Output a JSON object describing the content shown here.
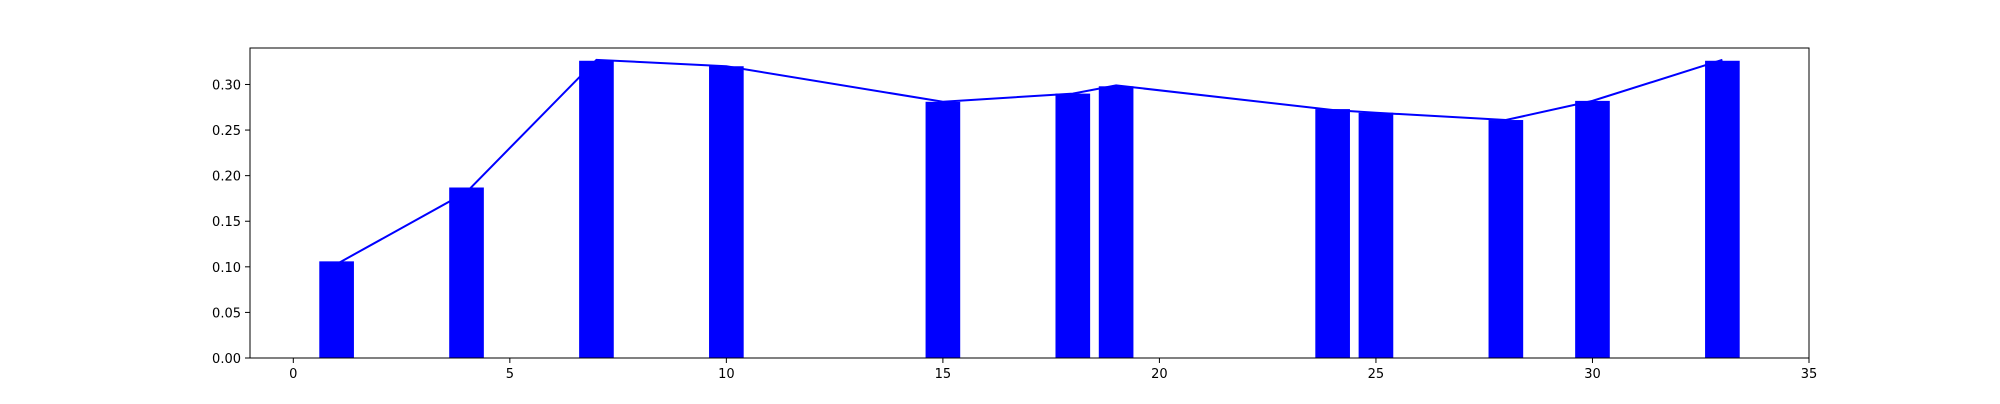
{
  "chart_data": {
    "type": "bar",
    "title": "",
    "xlabel": "",
    "ylabel": "",
    "xlim": [
      -1,
      35
    ],
    "ylim": [
      0,
      0.34
    ],
    "grid": false,
    "legend": "none",
    "xticks": [
      0,
      5,
      10,
      15,
      20,
      25,
      30,
      35
    ],
    "xtick_labels": [
      "0",
      "5",
      "10",
      "15",
      "20",
      "25",
      "30",
      "35"
    ],
    "yticks": [
      0.0,
      0.05,
      0.1,
      0.15,
      0.2,
      0.25,
      0.3
    ],
    "ytick_labels": [
      "0.00",
      "0.05",
      "0.10",
      "0.15",
      "0.20",
      "0.25",
      "0.30"
    ],
    "bar_width": 0.8,
    "series": [
      {
        "type": "bar",
        "color": "#0000ff",
        "x": [
          1,
          4,
          7,
          10,
          15,
          18,
          19,
          24,
          25,
          28,
          30,
          33
        ],
        "values": [
          0.106,
          0.187,
          0.326,
          0.32,
          0.281,
          0.29,
          0.298,
          0.273,
          0.269,
          0.261,
          0.282,
          0.326
        ]
      },
      {
        "type": "line",
        "color": "#0000ff",
        "x": [
          1,
          4,
          7,
          10,
          15,
          18,
          19,
          24,
          25,
          28,
          30,
          33
        ],
        "values": [
          0.103,
          0.182,
          0.327,
          0.32,
          0.281,
          0.29,
          0.299,
          0.272,
          0.269,
          0.261,
          0.282,
          0.327
        ]
      }
    ]
  }
}
